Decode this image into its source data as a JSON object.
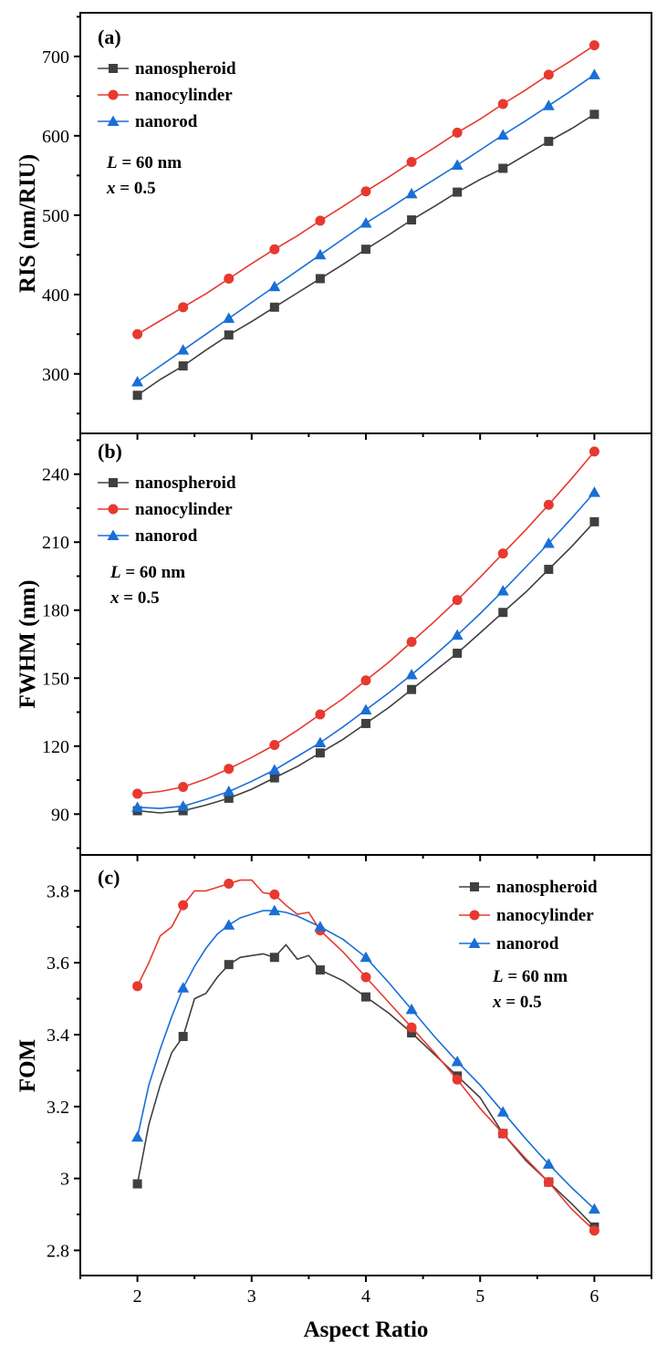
{
  "chart_data": [
    {
      "type": "line",
      "panel_label": "(a)",
      "ylabel": "RIS (nm/RIU)",
      "ylim": [
        225,
        755
      ],
      "yticks": [
        300,
        400,
        500,
        600,
        700
      ],
      "xlim": [
        1.5,
        6.5
      ],
      "legend_position": "top-left",
      "annotations": [
        "L = 60 nm",
        "x = 0.5"
      ],
      "series": [
        {
          "name": "nanospheroid",
          "color": "#404040",
          "marker": "square",
          "x": [
            2.0,
            2.2,
            2.4,
            2.6,
            2.8,
            3.0,
            3.2,
            3.4,
            3.6,
            3.8,
            4.0,
            4.2,
            4.4,
            4.6,
            4.8,
            5.0,
            5.2,
            5.4,
            5.6,
            5.8,
            6.0
          ],
          "y": [
            273,
            293,
            310,
            330,
            349,
            366,
            384,
            402,
            420,
            438,
            457,
            475,
            494,
            511,
            529,
            545,
            559,
            576,
            593,
            609,
            627
          ],
          "marker_x": [
            2.0,
            2.4,
            2.8,
            3.2,
            3.6,
            4.0,
            4.4,
            4.8,
            5.2,
            5.6,
            6.0
          ]
        },
        {
          "name": "nanocylinder",
          "color": "#e8392f",
          "marker": "circle",
          "x": [
            2.0,
            2.2,
            2.4,
            2.6,
            2.8,
            3.0,
            3.2,
            3.4,
            3.6,
            3.8,
            4.0,
            4.2,
            4.4,
            4.6,
            4.8,
            5.0,
            5.2,
            5.4,
            5.6,
            5.8,
            6.0
          ],
          "y": [
            350,
            367,
            384,
            401,
            420,
            439,
            457,
            474,
            493,
            511,
            530,
            548,
            567,
            585,
            604,
            621,
            640,
            658,
            677,
            695,
            714
          ],
          "marker_x": [
            2.0,
            2.4,
            2.8,
            3.2,
            3.6,
            4.0,
            4.4,
            4.8,
            5.2,
            5.6,
            6.0
          ]
        },
        {
          "name": "nanorod",
          "color": "#1a6fd6",
          "marker": "triangle",
          "x": [
            2.0,
            2.2,
            2.4,
            2.6,
            2.8,
            3.0,
            3.2,
            3.4,
            3.6,
            3.8,
            4.0,
            4.2,
            4.4,
            4.6,
            4.8,
            5.0,
            5.2,
            5.4,
            5.6,
            5.8,
            6.0
          ],
          "y": [
            290,
            310,
            330,
            350,
            370,
            390,
            410,
            430,
            450,
            470,
            490,
            508,
            527,
            545,
            563,
            582,
            601,
            619,
            638,
            657,
            677
          ],
          "marker_x": [
            2.0,
            2.4,
            2.8,
            3.2,
            3.6,
            4.0,
            4.4,
            4.8,
            5.2,
            5.6,
            6.0
          ]
        }
      ]
    },
    {
      "type": "line",
      "panel_label": "(b)",
      "ylabel": "FWHM (nm)",
      "ylim": [
        72,
        258
      ],
      "yticks": [
        90,
        120,
        150,
        180,
        210,
        240
      ],
      "xlim": [
        1.5,
        6.5
      ],
      "legend_position": "top-left",
      "annotations": [
        "L = 60 nm",
        "x = 0.5"
      ],
      "series": [
        {
          "name": "nanospheroid",
          "color": "#404040",
          "marker": "square",
          "x": [
            2.0,
            2.2,
            2.4,
            2.6,
            2.8,
            3.0,
            3.2,
            3.4,
            3.6,
            3.8,
            4.0,
            4.2,
            4.4,
            4.6,
            4.8,
            5.0,
            5.2,
            5.4,
            5.6,
            5.8,
            6.0
          ],
          "y": [
            91.5,
            90.5,
            91.5,
            94,
            97,
            101,
            106,
            111,
            117,
            123,
            130,
            137,
            145,
            153,
            161,
            170,
            179,
            188,
            198,
            208,
            219
          ],
          "marker_x": [
            2.0,
            2.4,
            2.8,
            3.2,
            3.6,
            4.0,
            4.4,
            4.8,
            5.2,
            5.6,
            6.0
          ]
        },
        {
          "name": "nanocylinder",
          "color": "#e8392f",
          "marker": "circle",
          "x": [
            2.0,
            2.2,
            2.4,
            2.6,
            2.8,
            3.0,
            3.2,
            3.4,
            3.6,
            3.8,
            4.0,
            4.2,
            4.4,
            4.6,
            4.8,
            5.0,
            5.2,
            5.4,
            5.6,
            5.8,
            6.0
          ],
          "y": [
            99,
            100,
            102,
            105.5,
            110,
            115,
            120.5,
            127,
            134,
            141,
            149,
            157,
            166,
            175,
            184.5,
            194.5,
            205,
            215.5,
            226.5,
            238,
            250
          ],
          "marker_x": [
            2.0,
            2.4,
            2.8,
            3.2,
            3.6,
            4.0,
            4.4,
            4.8,
            5.2,
            5.6,
            6.0
          ]
        },
        {
          "name": "nanorod",
          "color": "#1a6fd6",
          "marker": "triangle",
          "x": [
            2.0,
            2.2,
            2.4,
            2.6,
            2.8,
            3.0,
            3.2,
            3.4,
            3.6,
            3.8,
            4.0,
            4.2,
            4.4,
            4.6,
            4.8,
            5.0,
            5.2,
            5.4,
            5.6,
            5.8,
            6.0
          ],
          "y": [
            93,
            92.5,
            93.5,
            96.5,
            100,
            104.5,
            109.5,
            115.5,
            121.5,
            128.5,
            136,
            143.5,
            151.5,
            160,
            169,
            178.5,
            188.5,
            199,
            209.5,
            220.5,
            232
          ],
          "marker_x": [
            2.0,
            2.4,
            2.8,
            3.2,
            3.6,
            4.0,
            4.4,
            4.8,
            5.2,
            5.6,
            6.0
          ]
        }
      ]
    },
    {
      "type": "line",
      "panel_label": "(c)",
      "ylabel": "FOM",
      "ylim": [
        2.73,
        3.9
      ],
      "yticks": [
        2.8,
        3.0,
        3.2,
        3.4,
        3.6,
        3.8
      ],
      "xlim": [
        1.5,
        6.5
      ],
      "xticks": [
        2,
        3,
        4,
        5,
        6
      ],
      "xlabel": "Aspect Ratio",
      "legend_position": "top-right",
      "annotations": [
        "L = 60 nm",
        "x = 0.5"
      ],
      "series": [
        {
          "name": "nanospheroid",
          "color": "#404040",
          "marker": "square",
          "x": [
            2.0,
            2.1,
            2.2,
            2.3,
            2.4,
            2.5,
            2.6,
            2.7,
            2.8,
            2.9,
            3.0,
            3.1,
            3.2,
            3.3,
            3.4,
            3.5,
            3.6,
            3.8,
            4.0,
            4.2,
            4.4,
            4.6,
            4.8,
            5.0,
            5.2,
            5.4,
            5.6,
            5.8,
            6.0
          ],
          "y": [
            2.985,
            3.15,
            3.26,
            3.35,
            3.395,
            3.5,
            3.515,
            3.56,
            3.595,
            3.615,
            3.62,
            3.625,
            3.615,
            3.65,
            3.61,
            3.62,
            3.58,
            3.55,
            3.505,
            3.46,
            3.405,
            3.345,
            3.285,
            3.225,
            3.125,
            3.05,
            2.99,
            2.93,
            2.865
          ],
          "marker_x": [
            2.0,
            2.4,
            2.8,
            3.2,
            3.6,
            4.0,
            4.4,
            4.8,
            5.2,
            5.6,
            6.0
          ]
        },
        {
          "name": "nanocylinder",
          "color": "#e8392f",
          "marker": "circle",
          "x": [
            2.0,
            2.1,
            2.2,
            2.3,
            2.4,
            2.5,
            2.6,
            2.7,
            2.8,
            2.9,
            3.0,
            3.1,
            3.2,
            3.3,
            3.4,
            3.5,
            3.6,
            3.8,
            4.0,
            4.2,
            4.4,
            4.6,
            4.8,
            5.0,
            5.2,
            5.4,
            5.6,
            5.8,
            6.0
          ],
          "y": [
            3.535,
            3.6,
            3.675,
            3.7,
            3.76,
            3.8,
            3.8,
            3.81,
            3.82,
            3.83,
            3.83,
            3.795,
            3.79,
            3.76,
            3.735,
            3.74,
            3.69,
            3.63,
            3.56,
            3.49,
            3.42,
            3.35,
            3.275,
            3.195,
            3.125,
            3.055,
            2.99,
            2.915,
            2.855
          ],
          "marker_x": [
            2.0,
            2.4,
            2.8,
            3.2,
            3.6,
            4.0,
            4.4,
            4.8,
            5.2,
            5.6,
            6.0
          ]
        },
        {
          "name": "nanorod",
          "color": "#1a6fd6",
          "marker": "triangle",
          "x": [
            2.0,
            2.1,
            2.2,
            2.3,
            2.4,
            2.5,
            2.6,
            2.7,
            2.8,
            2.9,
            3.0,
            3.1,
            3.2,
            3.3,
            3.4,
            3.5,
            3.6,
            3.8,
            4.0,
            4.2,
            4.4,
            4.6,
            4.8,
            5.0,
            5.2,
            5.4,
            5.6,
            5.8,
            6.0
          ],
          "y": [
            3.115,
            3.26,
            3.36,
            3.45,
            3.53,
            3.59,
            3.64,
            3.68,
            3.705,
            3.725,
            3.735,
            3.745,
            3.745,
            3.74,
            3.73,
            3.715,
            3.7,
            3.665,
            3.615,
            3.545,
            3.47,
            3.395,
            3.325,
            3.26,
            3.185,
            3.11,
            3.04,
            2.975,
            2.915
          ],
          "marker_x": [
            2.0,
            2.4,
            2.8,
            3.2,
            3.6,
            4.0,
            4.4,
            4.8,
            5.2,
            5.6,
            6.0
          ]
        }
      ]
    }
  ]
}
